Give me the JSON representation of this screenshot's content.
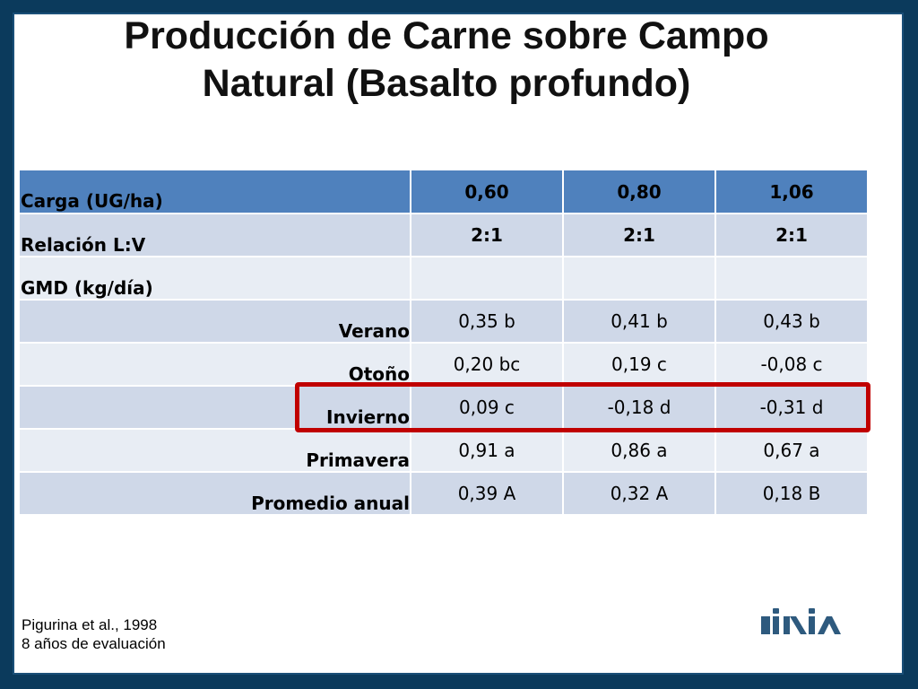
{
  "title": {
    "line1": "Producción de Carne sobre Campo",
    "line2": "Natural (Basalto profundo)"
  },
  "table": {
    "rows": [
      {
        "label": "Carga (UG/ha)",
        "values": [
          "0,60",
          "0,80",
          "1,06"
        ]
      },
      {
        "label": "Relación L:V",
        "values": [
          "2:1",
          "2:1",
          "2:1"
        ]
      },
      {
        "label": "GMD (kg/día)",
        "values": [
          "",
          "",
          ""
        ]
      },
      {
        "label": "Verano",
        "values": [
          "0,35 b",
          "0,41 b",
          "0,43 b"
        ]
      },
      {
        "label": "Otoño",
        "values": [
          "0,20 bc",
          "0,19 c",
          "-0,08 c"
        ]
      },
      {
        "label": "Invierno",
        "values": [
          "0,09 c",
          "-0,18 d",
          "-0,31 d"
        ]
      },
      {
        "label": "Primavera",
        "values": [
          "0,91 a",
          "0,86 a",
          "0,67 a"
        ]
      },
      {
        "label": "Promedio anual",
        "values": [
          "0,39 A",
          "0,32 A",
          "0,18 B"
        ]
      }
    ]
  },
  "footnote": {
    "line1": "Pigurina et al., 1998",
    "line2": "8 años de evaluación"
  },
  "logo": {
    "icon": "inia-logo",
    "color": "#2e5a7e"
  },
  "colors": {
    "header": "#4f81bd",
    "row_dark": "#cfd8e8",
    "row_light": "#e8edf4",
    "highlight": "#c00000",
    "frame": "#0b3a5c"
  }
}
